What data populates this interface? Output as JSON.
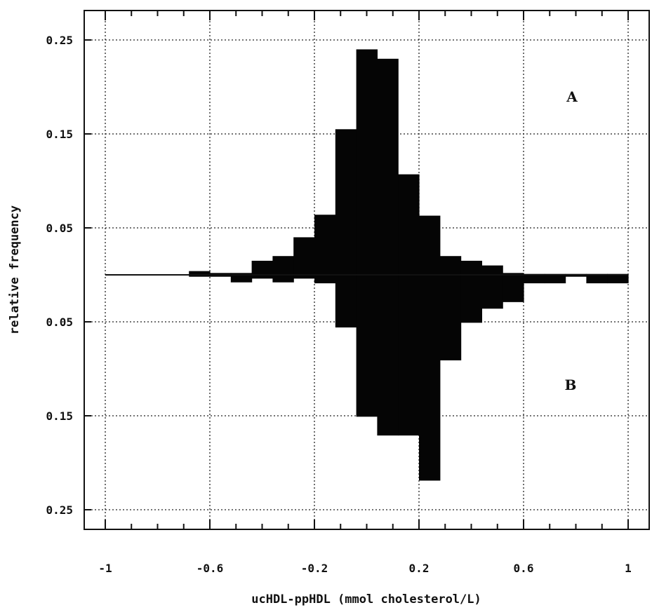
{
  "chart_data": {
    "type": "bar",
    "subtype": "mirrored-histogram",
    "title": "",
    "xlabel": "ucHDL-ppHDL (mmol cholesterol/L)",
    "ylabel": "relative frequency",
    "xlim": [
      -1,
      1
    ],
    "ylim_upper": [
      0,
      0.25
    ],
    "ylim_lower": [
      0,
      0.25
    ],
    "grid": true,
    "x_tick_labels": [
      "-1",
      "-0.6",
      "-0.2",
      "0.2",
      "0.6",
      "1"
    ],
    "y_tick_labels_upper": [
      "0.25",
      "0.15",
      "0.05"
    ],
    "y_tick_labels_lower": [
      "0.05",
      "0.15",
      "0.25"
    ],
    "series": [
      {
        "name": "A",
        "direction": "up",
        "bin_width": 0.08,
        "bin_starts": [
          -0.68,
          -0.6,
          -0.52,
          -0.44,
          -0.36,
          -0.28,
          -0.2,
          -0.12,
          -0.04,
          0.04,
          0.12,
          0.2,
          0.28,
          0.36,
          0.44,
          0.52,
          0.6,
          0.68,
          0.76,
          0.84,
          0.92
        ],
        "values": [
          0.004,
          0.002,
          0.002,
          0.015,
          0.02,
          0.04,
          0.064,
          0.155,
          0.24,
          0.23,
          0.107,
          0.063,
          0.02,
          0.015,
          0.01,
          0.002,
          0.001,
          0.001,
          0.001,
          0.001,
          0.001
        ]
      },
      {
        "name": "B",
        "direction": "down",
        "bin_width": 0.08,
        "bin_starts": [
          -0.68,
          -0.6,
          -0.52,
          -0.44,
          -0.36,
          -0.28,
          -0.2,
          -0.12,
          -0.04,
          0.04,
          0.12,
          0.2,
          0.28,
          0.36,
          0.44,
          0.52,
          0.6,
          0.68,
          0.76,
          0.84,
          0.92
        ],
        "values": [
          0.002,
          0.002,
          0.008,
          0.004,
          0.008,
          0.004,
          0.009,
          0.056,
          0.151,
          0.171,
          0.171,
          0.219,
          0.091,
          0.051,
          0.036,
          0.029,
          0.009,
          0.009,
          0.002,
          0.009,
          0.009
        ]
      }
    ]
  }
}
